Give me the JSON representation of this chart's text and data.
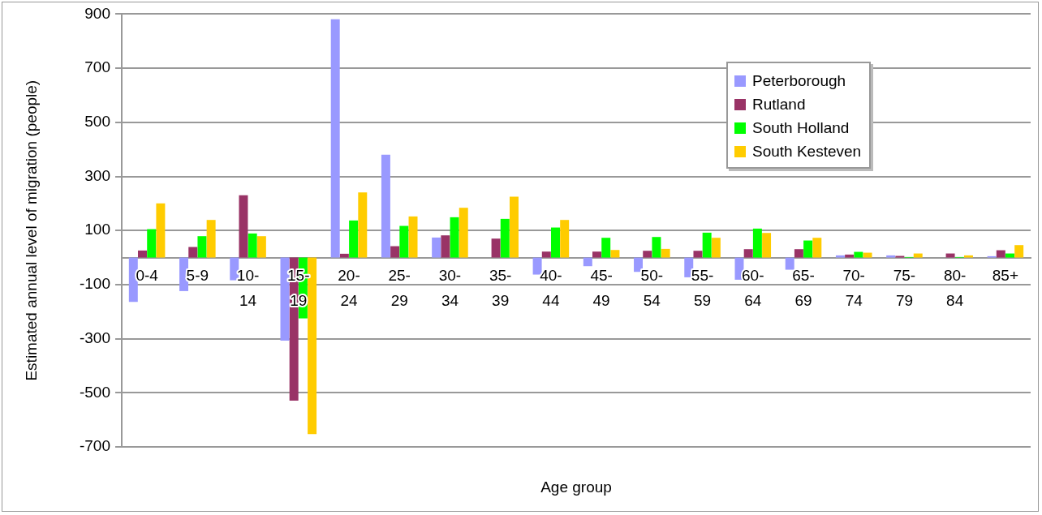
{
  "chart_data": {
    "type": "bar",
    "xlabel": "Age group",
    "ylabel": "Estimated annual level of migration (people)",
    "categories": [
      "0-4",
      "5-9",
      "10-14",
      "15-19",
      "20-24",
      "25-29",
      "30-34",
      "35-39",
      "40-44",
      "45-49",
      "50-54",
      "55-59",
      "60-64",
      "65-69",
      "70-74",
      "75-79",
      "80-84",
      "85+"
    ],
    "series": [
      {
        "name": "Peterborough",
        "color": "#9999ff",
        "values": [
          -164,
          -124,
          -84,
          -307,
          881,
          380,
          74,
          null,
          -63,
          -32,
          -53,
          -73,
          -82,
          -45,
          8,
          8,
          null,
          5
        ]
      },
      {
        "name": "Rutland",
        "color": "#993366",
        "values": [
          26,
          39,
          230,
          -529,
          14,
          42,
          82,
          70,
          22,
          22,
          25,
          25,
          31,
          31,
          11,
          6,
          15,
          27
        ]
      },
      {
        "name": "South Holland",
        "color": "#00ff00",
        "values": [
          105,
          79,
          89,
          -225,
          137,
          117,
          149,
          143,
          111,
          73,
          76,
          92,
          107,
          63,
          21,
          2,
          2,
          15
        ]
      },
      {
        "name": "South Kesteven",
        "color": "#ffcc00",
        "values": [
          200,
          139,
          79,
          -653,
          241,
          152,
          184,
          225,
          139,
          28,
          32,
          73,
          91,
          73,
          18,
          15,
          8,
          46
        ]
      }
    ],
    "ylim": [
      -700,
      900
    ],
    "yticks": [
      -700,
      -500,
      -300,
      -100,
      100,
      300,
      500,
      700,
      900
    ],
    "grid": "y",
    "legend": "top right"
  }
}
